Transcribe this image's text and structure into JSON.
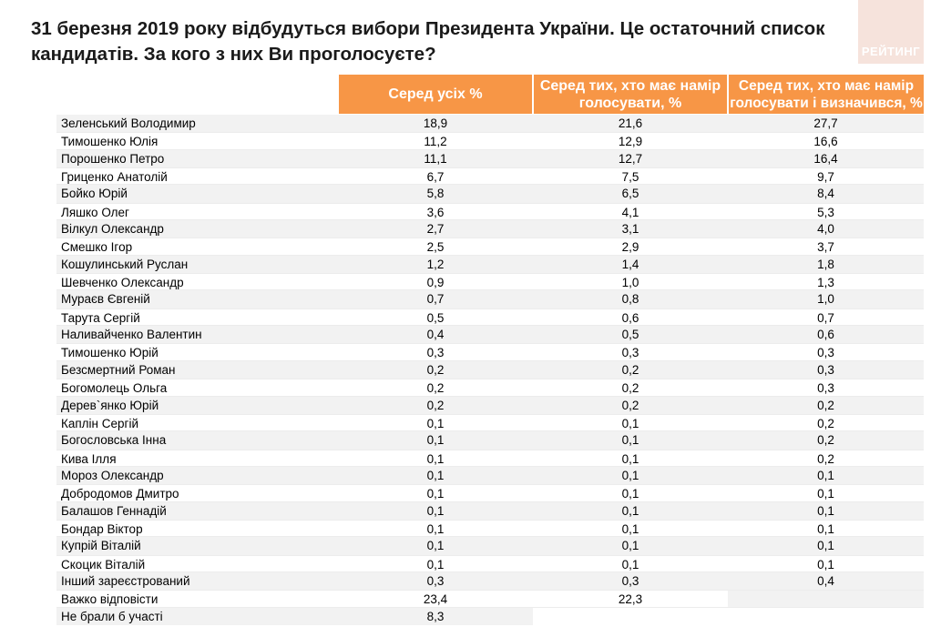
{
  "title": "31 березня 2019 року відбудуться вибори Президента України. Це остаточний список кандидатів. За кого з них Ви проголосуєте?",
  "logo_text": "РЕЙТИНГ",
  "headers": [
    "Серед усіх %",
    "Серед тих, хто має намір голосувати, %",
    "Серед тих, хто має намір голосувати і визначився, %"
  ],
  "rows": [
    {
      "name": "Зеленський Володимир",
      "v1": "18,9",
      "v2": "21,6",
      "v3": "27,7"
    },
    {
      "name": "Тимошенко Юлія",
      "v1": "11,2",
      "v2": "12,9",
      "v3": "16,6"
    },
    {
      "name": "Порошенко Петро",
      "v1": "11,1",
      "v2": "12,7",
      "v3": "16,4"
    },
    {
      "name": "Гриценко Анатолій",
      "v1": "6,7",
      "v2": "7,5",
      "v3": "9,7"
    },
    {
      "name": "Бойко Юрій",
      "v1": "5,8",
      "v2": "6,5",
      "v3": "8,4"
    },
    {
      "name": "Ляшко Олег",
      "v1": "3,6",
      "v2": "4,1",
      "v3": "5,3"
    },
    {
      "name": "Вілкул Олександр",
      "v1": "2,7",
      "v2": "3,1",
      "v3": "4,0"
    },
    {
      "name": "Смешко Ігор",
      "v1": "2,5",
      "v2": "2,9",
      "v3": "3,7"
    },
    {
      "name": "Кошулинський Руслан",
      "v1": "1,2",
      "v2": "1,4",
      "v3": "1,8"
    },
    {
      "name": "Шевченко Олександр",
      "v1": "0,9",
      "v2": "1,0",
      "v3": "1,3"
    },
    {
      "name": "Мураєв Євгеній",
      "v1": "0,7",
      "v2": "0,8",
      "v3": "1,0"
    },
    {
      "name": "Тарута Сергій",
      "v1": "0,5",
      "v2": "0,6",
      "v3": "0,7"
    },
    {
      "name": "Наливайченко Валентин",
      "v1": "0,4",
      "v2": "0,5",
      "v3": "0,6"
    },
    {
      "name": "Тимошенко Юрій",
      "v1": "0,3",
      "v2": "0,3",
      "v3": "0,3"
    },
    {
      "name": "Безсмертний Роман",
      "v1": "0,2",
      "v2": "0,2",
      "v3": "0,3"
    },
    {
      "name": "Богомолець Ольга",
      "v1": "0,2",
      "v2": "0,2",
      "v3": "0,3"
    },
    {
      "name": "Дерев`янко Юрій",
      "v1": "0,2",
      "v2": "0,2",
      "v3": "0,2"
    },
    {
      "name": "Каплін Сергій",
      "v1": "0,1",
      "v2": "0,1",
      "v3": "0,2"
    },
    {
      "name": "Богословська Інна",
      "v1": "0,1",
      "v2": "0,1",
      "v3": "0,2"
    },
    {
      "name": "Кива Ілля",
      "v1": "0,1",
      "v2": "0,1",
      "v3": "0,2"
    },
    {
      "name": "Мороз Олександр",
      "v1": "0,1",
      "v2": "0,1",
      "v3": "0,1"
    },
    {
      "name": "Добродомов Дмитро",
      "v1": "0,1",
      "v2": "0,1",
      "v3": "0,1"
    },
    {
      "name": "Балашов Геннадій",
      "v1": "0,1",
      "v2": "0,1",
      "v3": "0,1"
    },
    {
      "name": "Бондар Віктор",
      "v1": "0,1",
      "v2": "0,1",
      "v3": "0,1"
    },
    {
      "name": "Купрій Віталій",
      "v1": "0,1",
      "v2": "0,1",
      "v3": "0,1"
    },
    {
      "name": "Скоцик Віталій",
      "v1": "0,1",
      "v2": "0,1",
      "v3": "0,1"
    },
    {
      "name": "Інший зареєстрований",
      "v1": "0,3",
      "v2": "0,3",
      "v3": "0,4"
    },
    {
      "name": "Важко відповісти",
      "v1": "23,4",
      "v2": "22,3",
      "v3": ""
    },
    {
      "name": "Не брали б участі",
      "v1": "8,3",
      "v2": "",
      "v3": ""
    }
  ]
}
